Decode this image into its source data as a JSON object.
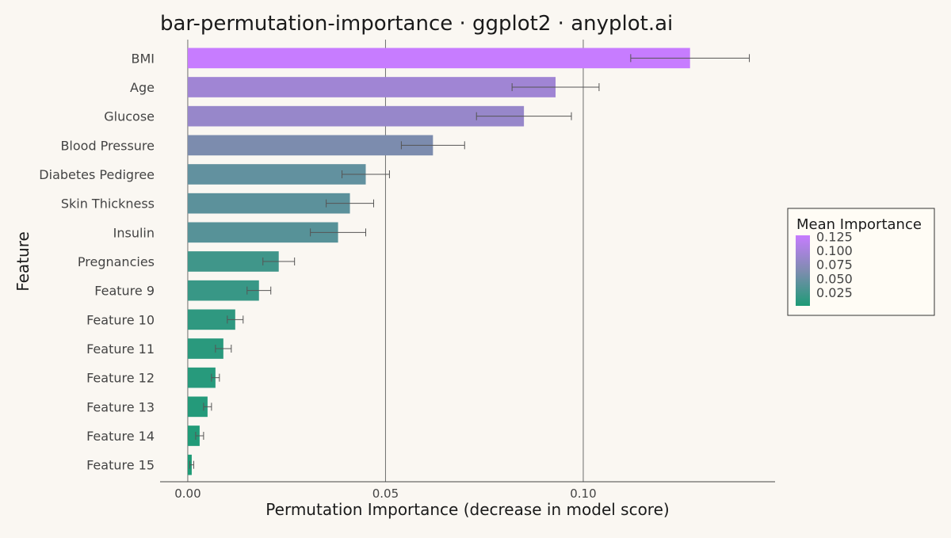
{
  "chart_data": {
    "type": "bar",
    "orientation": "horizontal",
    "title": "bar-permutation-importance · ggplot2 · anyplot.ai",
    "xlabel": "Permutation Importance (decrease in model score)",
    "ylabel": "Feature",
    "xlim": [
      -0.007,
      0.1485
    ],
    "x_ticks": [
      0.0,
      0.05,
      0.1
    ],
    "x_tick_labels": [
      "0.00",
      "0.05",
      "0.10"
    ],
    "grid": "vertical major lines only",
    "categories": [
      "BMI",
      "Age",
      "Glucose",
      "Blood Pressure",
      "Diabetes Pedigree",
      "Skin Thickness",
      "Insulin",
      "Pregnancies",
      "Feature 9",
      "Feature 10",
      "Feature 11",
      "Feature 12",
      "Feature 13",
      "Feature 14",
      "Feature 15"
    ],
    "values": [
      0.127,
      0.093,
      0.085,
      0.062,
      0.045,
      0.041,
      0.038,
      0.023,
      0.018,
      0.012,
      0.009,
      0.007,
      0.005,
      0.003,
      0.001
    ],
    "errors": [
      0.015,
      0.011,
      0.012,
      0.008,
      0.006,
      0.006,
      0.007,
      0.004,
      0.003,
      0.002,
      0.002,
      0.001,
      0.001,
      0.001,
      0.0005
    ],
    "legend": {
      "title": "Mean Importance",
      "placement": "right",
      "breaks": [
        "0.125",
        "0.100",
        "0.075",
        "0.050",
        "0.025"
      ],
      "break_values": [
        0.125,
        0.1,
        0.075,
        0.05,
        0.025
      ],
      "range": [
        0.001,
        0.127
      ]
    },
    "colors": {
      "low": "#1E9B76",
      "mid": "#7F8CB0",
      "high": "#C77CFF",
      "background": "#FAF7F2",
      "gridline": "#6E6E6E",
      "errorbar": "#555555",
      "text": "#444444",
      "title": "#1A1A1A"
    }
  }
}
